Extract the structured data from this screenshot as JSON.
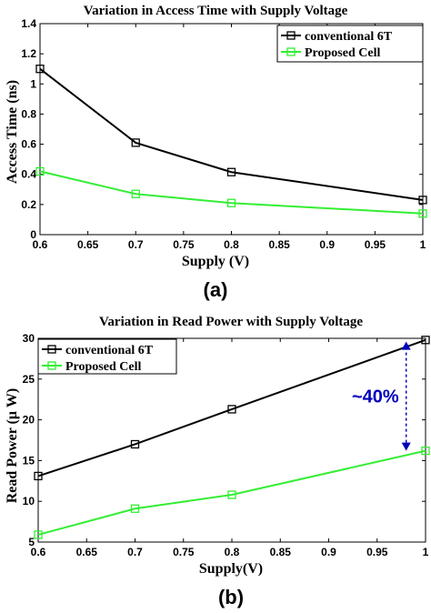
{
  "chart_data": [
    {
      "type": "line",
      "title": "Variation in Access Time with Supply Voltage",
      "xlabel": "Supply (V)",
      "ylabel": "Access Time (ns)",
      "panel_label": "(a)",
      "xlim": [
        0.6,
        1
      ],
      "ylim": [
        0,
        1.4
      ],
      "xticks": [
        0.6,
        0.65,
        0.7,
        0.75,
        0.8,
        0.85,
        0.9,
        0.95,
        1
      ],
      "xtick_labels": [
        "0.6",
        "0.65",
        "0.7",
        "0.75",
        "0.8",
        "0.85",
        "0.9",
        "0.95",
        "1"
      ],
      "yticks": [
        0,
        0.2,
        0.4,
        0.6,
        0.8,
        1,
        1.2,
        1.4
      ],
      "ytick_labels": [
        "0",
        "0.2",
        "0.4",
        "0.6",
        "0.8",
        "1",
        "1.2",
        "1.4"
      ],
      "legend": "top-right",
      "series": [
        {
          "name": "conventional 6T",
          "color": "#000000",
          "x": [
            0.6,
            0.7,
            0.8,
            1
          ],
          "values": [
            1.1,
            0.61,
            0.415,
            0.23
          ]
        },
        {
          "name": "Proposed Cell",
          "color": "#33ee33",
          "x": [
            0.6,
            0.7,
            0.8,
            1
          ],
          "values": [
            0.42,
            0.27,
            0.21,
            0.14
          ]
        }
      ]
    },
    {
      "type": "line",
      "title": "Variation in Read Power with Supply Voltage",
      "xlabel": "Supply(V)",
      "ylabel": "Read Power (μ W)",
      "panel_label": "(b)",
      "xlim": [
        0.6,
        1
      ],
      "ylim": [
        5,
        30
      ],
      "xticks": [
        0.6,
        0.65,
        0.7,
        0.75,
        0.8,
        0.85,
        0.9,
        0.95,
        1
      ],
      "xtick_labels": [
        "0.6",
        "0.65",
        "0.7",
        "0.75",
        "0.8",
        "0.85",
        "0.9",
        "0.95",
        "1"
      ],
      "yticks": [
        5,
        10,
        15,
        20,
        25,
        30
      ],
      "ytick_labels": [
        "5",
        "10",
        "15",
        "20",
        "25",
        "30"
      ],
      "legend": "top-left",
      "annotation": {
        "text": "~40%",
        "color": "#0000bb",
        "x": 0.98,
        "y_top": 29.6,
        "y_bottom": 16.2
      },
      "series": [
        {
          "name": "conventional 6T",
          "color": "#000000",
          "x": [
            0.6,
            0.7,
            0.8,
            1
          ],
          "values": [
            13.1,
            17,
            21.3,
            29.8
          ]
        },
        {
          "name": "Proposed Cell",
          "color": "#33ee33",
          "x": [
            0.6,
            0.7,
            0.8,
            1
          ],
          "values": [
            5.9,
            9.1,
            10.8,
            16.2
          ]
        }
      ]
    }
  ]
}
